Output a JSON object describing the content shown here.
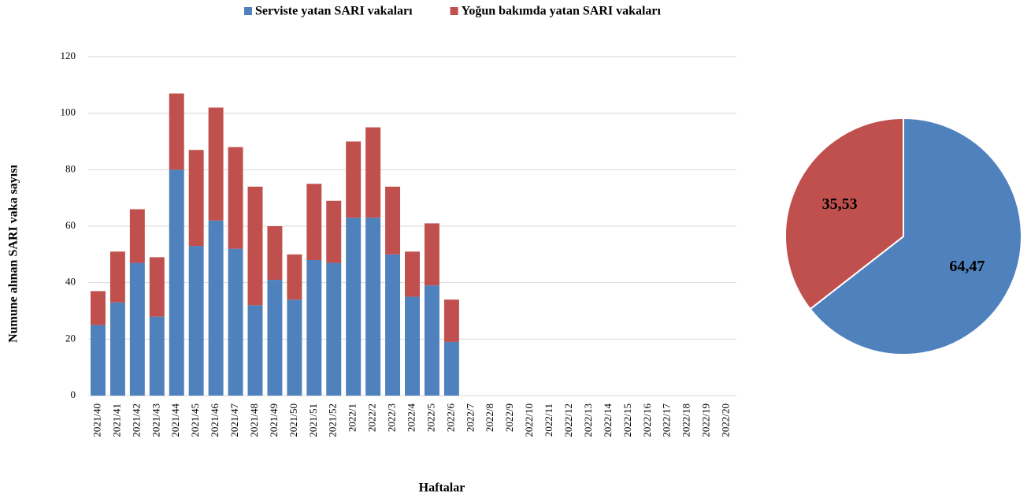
{
  "chart_data": [
    {
      "type": "bar",
      "stacked": true,
      "y_label": "Numune alınan SARI vaka sayısı",
      "x_label": "Haftalar",
      "categories": [
        "2021/40",
        "2021/41",
        "2021/42",
        "2021/43",
        "2021/44",
        "2021/45",
        "2021/46",
        "2021/47",
        "2021/48",
        "2021/49",
        "2021/50",
        "2021/51",
        "2021/52",
        "2022/1",
        "2022/2",
        "2022/3",
        "2022/4",
        "2022/5",
        "2022/6",
        "2022/7",
        "2022/8",
        "2022/9",
        "2022/10",
        "2022/11",
        "2022/12",
        "2022/13",
        "2022/14",
        "2022/15",
        "2022/16",
        "2022/17",
        "2022/18",
        "2022/19",
        "2022/20"
      ],
      "series": [
        {
          "name": "Serviste yatan SARI vakaları",
          "color": "#4f81bd",
          "values": [
            25,
            33,
            47,
            28,
            80,
            53,
            62,
            52,
            32,
            41,
            34,
            48,
            47,
            63,
            63,
            50,
            35,
            39,
            19,
            null,
            null,
            null,
            null,
            null,
            null,
            null,
            null,
            null,
            null,
            null,
            null,
            null,
            null
          ]
        },
        {
          "name": "Yoğun bakımda yatan SARI vakaları",
          "color": "#c0504d",
          "values": [
            12,
            18,
            19,
            21,
            27,
            34,
            40,
            36,
            42,
            19,
            16,
            27,
            22,
            27,
            32,
            24,
            16,
            22,
            15,
            null,
            null,
            null,
            null,
            null,
            null,
            null,
            null,
            null,
            null,
            null,
            null,
            null,
            null
          ]
        }
      ],
      "ylim": [
        0,
        120
      ],
      "yticks": [
        0,
        20,
        40,
        60,
        80,
        100,
        120
      ],
      "grid": true,
      "legend": "top"
    },
    {
      "type": "pie",
      "values": [
        64.47,
        35.53
      ],
      "value_labels": [
        "64,47",
        "35,53"
      ],
      "colors": [
        "#4f81bd",
        "#c0504d"
      ]
    }
  ]
}
